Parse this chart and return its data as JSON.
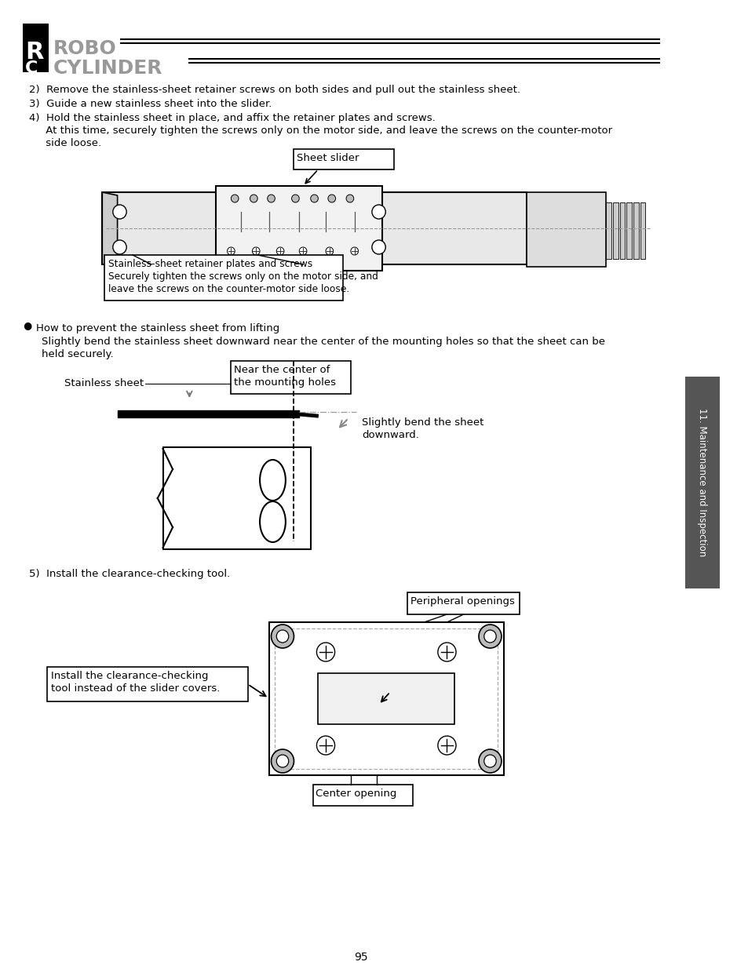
{
  "page_number": "95",
  "bg_color": "#ffffff",
  "text_color": "#000000",
  "callout_sheet_slider": "Sheet slider",
  "callout_retainer_line1": "Stainless-sheet retainer plates and screws",
  "callout_retainer_line2": "Securely tighten the screws only on the motor side, and",
  "callout_retainer_line3": "leave the screws on the counter-motor side loose.",
  "bullet_section_title": "How to prevent the stainless sheet from lifting",
  "bullet_section_body1": "Slightly bend the stainless sheet downward near the center of the mounting holes so that the sheet can be",
  "bullet_section_body2": "held securely.",
  "callout_stainless_sheet": "Stainless sheet",
  "callout_near_center_line1": "Near the center of",
  "callout_near_center_line2": "the mounting holes",
  "callout_bend_line1": "Slightly bend the sheet",
  "callout_bend_line2": "downward.",
  "step5_text": "5)  Install the clearance-checking tool.",
  "callout_peripheral": "Peripheral openings",
  "callout_install_line1": "Install the clearance-checking",
  "callout_install_line2": "tool instead of the slider covers.",
  "callout_center_opening": "Center opening",
  "sidebar_text": "11. Maintenance and Inspection",
  "body_line1": "2)  Remove the stainless-sheet retainer screws on both sides and pull out the stainless sheet.",
  "body_line2": "3)  Guide a new stainless sheet into the slider.",
  "body_line3": "4)  Hold the stainless sheet in place, and affix the retainer plates and screws.",
  "body_line4": "     At this time, securely tighten the screws only on the motor side, and leave the screws on the counter-motor",
  "body_line5": "     side loose."
}
